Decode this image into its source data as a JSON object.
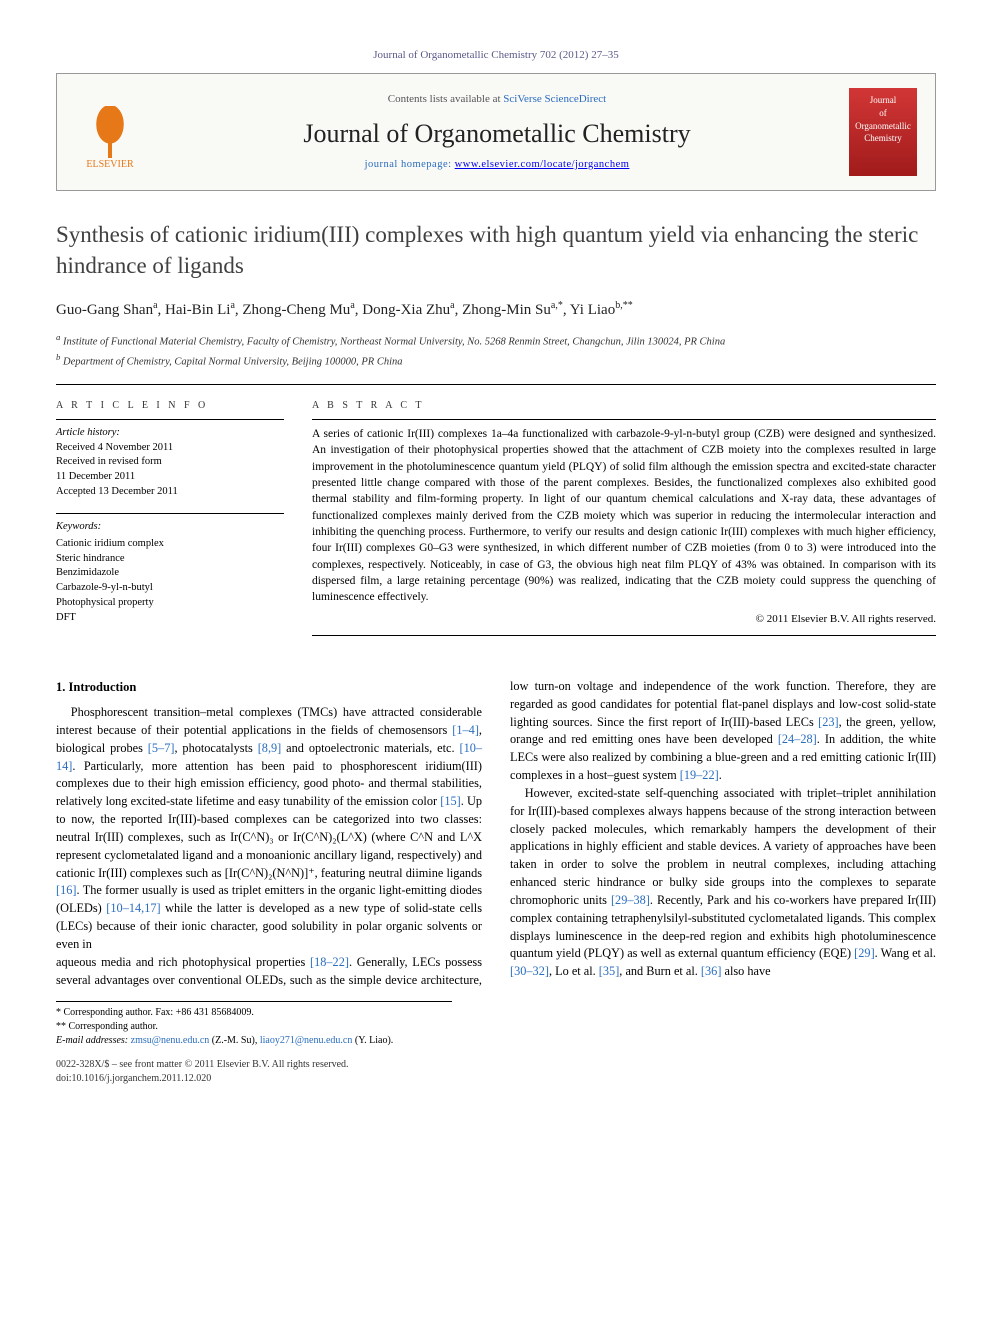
{
  "header": {
    "journal_ref": "Journal of Organometallic Chemistry 702 (2012) 27–35",
    "contents_prefix": "Contents lists available at ",
    "contents_link": "SciVerse ScienceDirect",
    "journal_name": "Journal of Organometallic Chemistry",
    "homepage_prefix": "journal homepage: ",
    "homepage_url": "www.elsevier.com/locate/jorganchem",
    "publisher_label": "ELSEVIER",
    "cover_text_1": "Journal",
    "cover_text_2": "of Organometallic",
    "cover_text_3": "Chemistry"
  },
  "title": "Synthesis of cationic iridium(III) complexes with high quantum yield via enhancing the steric hindrance of ligands",
  "authors_html": "Guo-Gang Shan<sup>a</sup>, Hai-Bin Li<sup>a</sup>, Zhong-Cheng Mu<sup>a</sup>, Dong-Xia Zhu<sup>a</sup>, Zhong-Min Su<sup>a,*</sup>, Yi Liao<sup>b,**</sup>",
  "affiliations": {
    "a": "Institute of Functional Material Chemistry, Faculty of Chemistry, Northeast Normal University, No. 5268 Renmin Street, Changchun, Jilin 130024, PR China",
    "b": "Department of Chemistry, Capital Normal University, Beijing 100000, PR China"
  },
  "article_info": {
    "heading": "A R T I C L E  I N F O",
    "history_label": "Article history:",
    "history": [
      "Received 4 November 2011",
      "Received in revised form",
      "11 December 2011",
      "Accepted 13 December 2011"
    ],
    "keywords_label": "Keywords:",
    "keywords": [
      "Cationic iridium complex",
      "Steric hindrance",
      "Benzimidazole",
      "Carbazole-9-yl-n-butyl",
      "Photophysical property",
      "DFT"
    ]
  },
  "abstract": {
    "heading": "A B S T R A C T",
    "text": "A series of cationic Ir(III) complexes 1a–4a functionalized with carbazole-9-yl-n-butyl group (CZB) were designed and synthesized. An investigation of their photophysical properties showed that the attachment of CZB moiety into the complexes resulted in large improvement in the photoluminescence quantum yield (PLQY) of solid film although the emission spectra and excited-state character presented little change compared with those of the parent complexes. Besides, the functionalized complexes also exhibited good thermal stability and film-forming property. In light of our quantum chemical calculations and X-ray data, these advantages of functionalized complexes mainly derived from the CZB moiety which was superior in reducing the intermolecular interaction and inhibiting the quenching process. Furthermore, to verify our results and design cationic Ir(III) complexes with much higher efficiency, four Ir(III) complexes G0–G3 were synthesized, in which different number of CZB moieties (from 0 to 3) were introduced into the complexes, respectively. Noticeably, in case of G3, the obvious high neat film PLQY of 43% was obtained. In comparison with its dispersed film, a large retaining percentage (90%) was realized, indicating that the CZB moiety could suppress the quenching of luminescence effectively.",
    "copyright": "© 2011 Elsevier B.V. All rights reserved."
  },
  "body": {
    "section_number": "1.",
    "section_title": "Introduction",
    "para1": "Phosphorescent transition–metal complexes (TMCs) have attracted considerable interest because of their potential applications in the fields of chemosensors [1–4], biological probes [5–7], photocatalysts [8,9] and optoelectronic materials, etc. [10–14]. Particularly, more attention has been paid to phosphorescent iridium(III) complexes due to their high emission efficiency, good photo- and thermal stabilities, relatively long excited-state lifetime and easy tunability of the emission color [15]. Up to now, the reported Ir(III)-based complexes can be categorized into two classes: neutral Ir(III) complexes, such as Ir(C^N)₃ or Ir(C^N)₂(L^X) (where C^N and L^X represent cyclometalated ligand and a monoanionic ancillary ligand, respectively) and cationic Ir(III) complexes such as [Ir(C^N)₂(N^N)]⁺, featuring neutral diimine ligands [16]. The former usually is used as triplet emitters in the organic light-emitting diodes (OLEDs) [10–14,17] while the latter is developed as a new type of solid-state cells (LECs) because of their ionic character, good solubility in polar organic solvents or even in",
    "para2": "aqueous media and rich photophysical properties [18–22]. Generally, LECs possess several advantages over conventional OLEDs, such as the simple device architecture, low turn-on voltage and independence of the work function. Therefore, they are regarded as good candidates for potential flat-panel displays and low-cost solid-state lighting sources. Since the first report of Ir(III)-based LECs [23], the green, yellow, orange and red emitting ones have been developed [24–28]. In addition, the white LECs were also realized by combining a blue-green and a red emitting cationic Ir(III) complexes in a host–guest system [19–22].",
    "para3": "However, excited-state self-quenching associated with triplet–triplet annihilation for Ir(III)-based complexes always happens because of the strong interaction between closely packed molecules, which remarkably hampers the development of their applications in highly efficient and stable devices. A variety of approaches have been taken in order to solve the problem in neutral complexes, including attaching enhanced steric hindrance or bulky side groups into the complexes to separate chromophoric units [29–38]. Recently, Park and his co-workers have prepared Ir(III) complex containing tetraphenylsilyl-substituted cyclometalated ligands. This complex displays luminescence in the deep-red region and exhibits high photoluminescence quantum yield (PLQY) as well as external quantum efficiency (EQE) [29]. Wang et al. [30–32], Lo et al. [35], and Burn et al. [36] also have"
  },
  "footnotes": {
    "corr1": "* Corresponding author. Fax: +86 431 85684009.",
    "corr2": "** Corresponding author.",
    "emails_label": "E-mail addresses:",
    "email1": "zmsu@nenu.edu.cn",
    "email1_name": "(Z.-M. Su),",
    "email2": "liaoy271@nenu.edu.cn",
    "email2_name": "(Y. Liao)."
  },
  "bottom": {
    "line1": "0022-328X/$ – see front matter © 2011 Elsevier B.V. All rights reserved.",
    "line2": "doi:10.1016/j.jorganchem.2011.12.020"
  },
  "colors": {
    "link": "#2a6dbf",
    "elsevier_orange": "#e67817",
    "cover_red": "#b92424",
    "text": "#000000",
    "header_bg": "#f9f9f6"
  }
}
